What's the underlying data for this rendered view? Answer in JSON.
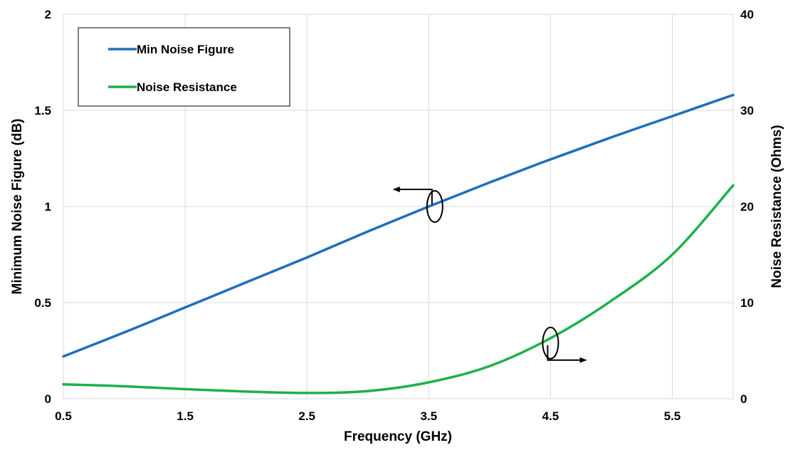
{
  "chart_data": {
    "type": "line",
    "title": "",
    "xlabel": "Frequency (GHz)",
    "ylabel_left": "Minimum Noise Figure (dB)",
    "ylabel_right": "Noise Resistance (Ohms)",
    "xlim": [
      0.5,
      6.0
    ],
    "ylim_left": [
      0,
      2
    ],
    "ylim_right": [
      0,
      40
    ],
    "x_ticks": [
      "0.5",
      "1.5",
      "2.5",
      "3.5",
      "4.5",
      "5.5"
    ],
    "x_tick_values": [
      0.5,
      1.5,
      2.5,
      3.5,
      4.5,
      5.5
    ],
    "y_left_ticks": [
      "0",
      "0.5",
      "1",
      "1.5",
      "2"
    ],
    "y_left_tick_values": [
      0,
      0.5,
      1,
      1.5,
      2
    ],
    "y_right_ticks": [
      "0",
      "10",
      "20",
      "30",
      "40"
    ],
    "y_right_tick_values": [
      0,
      10,
      20,
      30,
      40
    ],
    "grid": true,
    "legend_position": "top-left",
    "series": [
      {
        "name": "Min Noise Figure",
        "axis": "left",
        "color": "#1f6fba",
        "x": [
          0.5,
          1.0,
          1.5,
          2.0,
          2.5,
          3.0,
          3.5,
          4.0,
          4.5,
          5.0,
          5.5,
          6.0
        ],
        "y": [
          0.22,
          0.345,
          0.475,
          0.605,
          0.735,
          0.87,
          1.0,
          1.125,
          1.245,
          1.36,
          1.47,
          1.58
        ]
      },
      {
        "name": "Noise Resistance",
        "axis": "right",
        "color": "#1fb04b",
        "x": [
          0.5,
          1.0,
          1.5,
          2.0,
          2.5,
          3.0,
          3.5,
          4.0,
          4.5,
          5.0,
          5.5,
          6.0
        ],
        "y": [
          1.5,
          1.3,
          1.0,
          0.75,
          0.6,
          0.8,
          1.7,
          3.4,
          6.3,
          10.2,
          15.0,
          22.2
        ]
      }
    ],
    "annotations": [
      {
        "kind": "axis-indicator",
        "series": "Min Noise Figure",
        "direction": "left",
        "at_x": 3.55,
        "at_y": 1.0
      },
      {
        "kind": "axis-indicator",
        "series": "Noise Resistance",
        "direction": "right",
        "at_x": 4.5,
        "at_y": 5.8
      }
    ]
  }
}
